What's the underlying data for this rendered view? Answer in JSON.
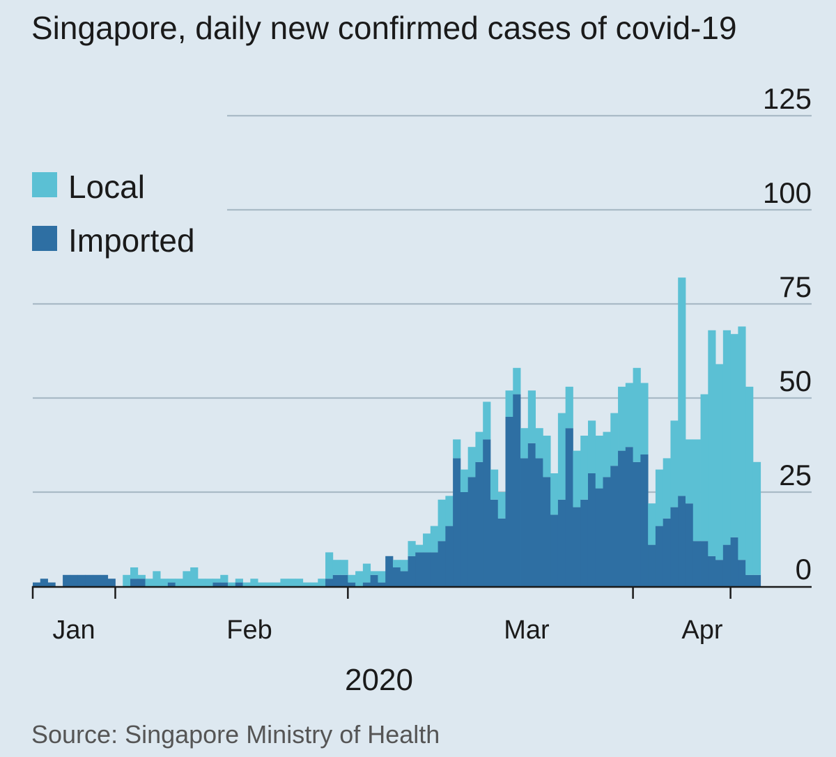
{
  "chart_data": {
    "type": "bar",
    "stacked": true,
    "title": "Singapore, daily new confirmed cases of covid-19",
    "source": "Source: Singapore Ministry of Health",
    "year_label": "2020",
    "ylim": [
      0,
      125
    ],
    "y_ticks": [
      0,
      25,
      50,
      75,
      100,
      125
    ],
    "y_tick_labels": [
      "0",
      "25",
      "50",
      "75",
      "100",
      "125"
    ],
    "grid": true,
    "x_tick_labels": [
      {
        "label": "Jan",
        "day_index": 8
      },
      {
        "label": "Feb",
        "day_index": 27
      },
      {
        "label": "Mar",
        "day_index": 57
      },
      {
        "label": "Apr",
        "day_index": 87
      }
    ],
    "legend_position": "top-left",
    "start_date": "2020-01-23",
    "series": [
      {
        "name": "Local",
        "color": "#5bc0d4",
        "values": [
          0,
          0,
          0,
          0,
          0,
          0,
          0,
          0,
          0,
          0,
          0,
          0,
          3,
          3,
          1,
          2,
          4,
          2,
          1,
          2,
          4,
          5,
          2,
          2,
          1,
          2,
          1,
          1,
          1,
          2,
          1,
          1,
          1,
          2,
          2,
          2,
          1,
          1,
          2,
          7,
          4,
          4,
          2,
          4,
          5,
          1,
          3,
          0,
          2,
          3,
          4,
          2,
          5,
          7,
          11,
          8,
          5,
          6,
          8,
          8,
          10,
          8,
          7,
          7,
          7,
          8,
          14,
          8,
          11,
          11,
          23,
          11,
          15,
          17,
          14,
          14,
          12,
          14,
          17,
          17,
          25,
          19,
          11,
          15,
          16,
          23,
          58,
          17,
          27,
          39,
          60,
          52,
          57,
          54,
          62,
          50,
          30
        ]
      },
      {
        "name": "Imported",
        "color": "#2e6fa3",
        "values": [
          1,
          2,
          1,
          0,
          3,
          3,
          3,
          3,
          3,
          3,
          2,
          0,
          0,
          2,
          2,
          0,
          0,
          0,
          1,
          0,
          0,
          0,
          0,
          0,
          1,
          1,
          0,
          1,
          0,
          0,
          0,
          0,
          0,
          0,
          0,
          0,
          0,
          0,
          0,
          2,
          3,
          3,
          1,
          0,
          1,
          3,
          1,
          8,
          5,
          4,
          8,
          9,
          9,
          9,
          12,
          16,
          34,
          25,
          29,
          33,
          39,
          23,
          18,
          45,
          51,
          34,
          38,
          34,
          29,
          19,
          23,
          42,
          21,
          23,
          30,
          26,
          29,
          32,
          36,
          37,
          33,
          35,
          11,
          16,
          18,
          21,
          24,
          22,
          12,
          12,
          8,
          7,
          11,
          13,
          7,
          3,
          3
        ]
      }
    ]
  }
}
